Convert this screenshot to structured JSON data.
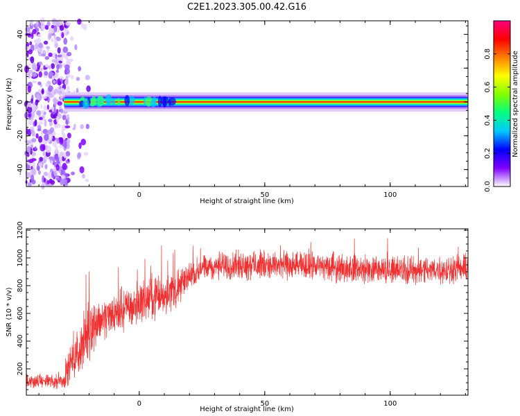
{
  "title": "C2E1.2023.305.00.42.G16",
  "chart_data": [
    {
      "type": "heatmap",
      "xlabel": "Height of straight line (km)",
      "ylabel": "Frequency (Hz)",
      "xlim": [
        -45,
        131
      ],
      "ylim": [
        -50,
        48
      ],
      "xticks": [
        0,
        50,
        100
      ],
      "yticks": [
        -40,
        -20,
        0,
        20,
        40
      ],
      "colorbar": {
        "label": "Normalized spectral amplitude",
        "range": [
          0,
          1
        ],
        "ticks": [
          0.0,
          0.2,
          0.4,
          0.6,
          0.8
        ],
        "colormap": [
          "#ffffff",
          "#8000ff",
          "#0000ff",
          "#00c8ff",
          "#00ff80",
          "#80ff00",
          "#ffff00",
          "#ff8000",
          "#ff0000",
          "#ff0080"
        ]
      },
      "features": {
        "noise_region_x": [
          -45,
          -30
        ],
        "carrier_start_x": -30,
        "carrier_frequency_hz": 0,
        "carrier_halfwidth_hz": 3
      }
    },
    {
      "type": "line",
      "xlabel": "Height of straight line (km)",
      "ylabel": "SNR (10 * v/v)",
      "xlim": [
        -45,
        131
      ],
      "ylim": [
        10,
        1210
      ],
      "xticks": [
        0,
        50,
        100
      ],
      "yticks": [
        200,
        400,
        600,
        800,
        1000,
        1200
      ],
      "color": "#f03030",
      "profile": {
        "x": [
          -45,
          -35,
          -30,
          -28,
          -25,
          -22,
          -20,
          -18,
          -15,
          -10,
          -5,
          0,
          5,
          10,
          15,
          18,
          20,
          25,
          30,
          40,
          50,
          60,
          70,
          80,
          90,
          100,
          110,
          120,
          131
        ],
        "mean": [
          110,
          110,
          115,
          220,
          300,
          400,
          470,
          520,
          560,
          600,
          640,
          680,
          710,
          740,
          770,
          820,
          880,
          920,
          940,
          950,
          950,
          945,
          940,
          930,
          920,
          915,
          910,
          910,
          930
        ],
        "amplitude": [
          50,
          50,
          60,
          120,
          160,
          200,
          200,
          170,
          150,
          150,
          150,
          150,
          150,
          150,
          150,
          120,
          90,
          100,
          100,
          100,
          100,
          100,
          100,
          100,
          100,
          100,
          100,
          100,
          100
        ]
      }
    }
  ]
}
